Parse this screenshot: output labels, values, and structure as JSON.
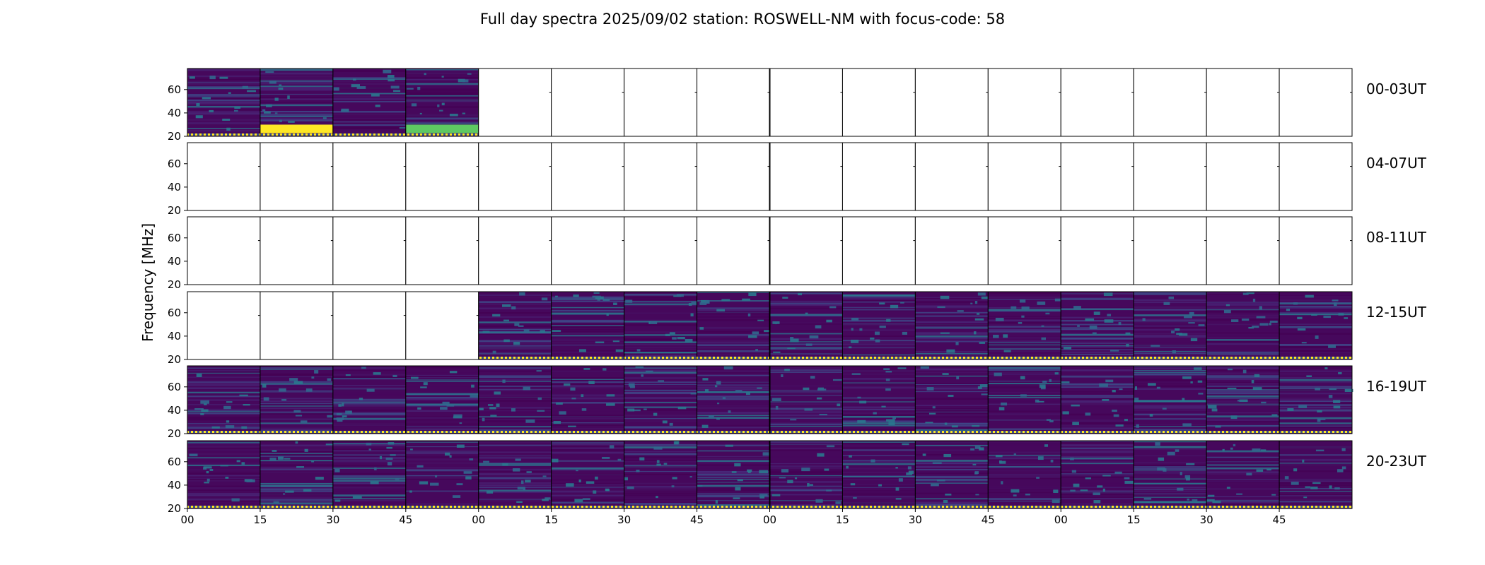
{
  "chart_data": {
    "type": "heatmap",
    "title": "Full day spectra 2025/09/02 station: ROSWELL-NM with focus-code: 58",
    "ylabel": "Frequency [MHz]",
    "ylim": [
      20,
      78
    ],
    "yticks": [
      20,
      40,
      60
    ],
    "xtick_labels": [
      "00",
      "15",
      "30",
      "45",
      "00",
      "15",
      "30",
      "45",
      "00",
      "15",
      "30",
      "45",
      "00",
      "15",
      "30",
      "45"
    ],
    "colormap": {
      "low": "#46085c",
      "mid": "#2a788e",
      "high": "#fde725"
    },
    "rows": [
      {
        "label": "00-03UT",
        "panels_with_data": [
          0,
          1,
          2,
          3
        ]
      },
      {
        "label": "04-07UT",
        "panels_with_data": []
      },
      {
        "label": "08-11UT",
        "panels_with_data": []
      },
      {
        "label": "12-15UT",
        "panels_with_data": [
          4,
          5,
          6,
          7,
          8,
          9,
          10,
          11,
          12,
          13,
          14,
          15
        ]
      },
      {
        "label": "16-19UT",
        "panels_with_data": [
          0,
          1,
          2,
          3,
          4,
          5,
          6,
          7,
          8,
          9,
          10,
          11,
          12,
          13,
          14,
          15
        ]
      },
      {
        "label": "20-23UT",
        "panels_with_data": [
          0,
          1,
          2,
          3,
          4,
          5,
          6,
          7,
          8,
          9,
          10,
          11,
          12,
          13,
          14,
          15
        ]
      }
    ],
    "panels_per_row": 16,
    "grid": false
  }
}
